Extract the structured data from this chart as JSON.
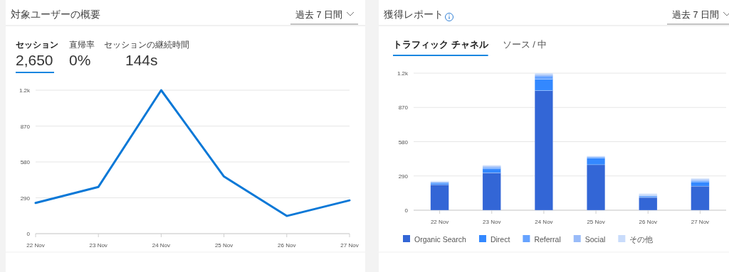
{
  "chart_data": [
    {
      "type": "line",
      "title": "対象ユーザーの概要",
      "annotations": [
        "過去 7 日間",
        "セッション",
        "2,650",
        "直帰率",
        "0%",
        "セッションの継続時間",
        "144s"
      ],
      "categories": [
        "22 Nov",
        "23 Nov",
        "24 Nov",
        "25 Nov",
        "26 Nov",
        "27 Nov"
      ],
      "series": [
        {
          "color": "#0a78d7",
          "values": [
            248,
            378,
            1160,
            462,
            143,
            269
          ]
        }
      ],
      "ylim": [
        0,
        1160
      ],
      "yticks": [
        0,
        290,
        580,
        870,
        {
          "value": 1160,
          "label": "1.2k"
        }
      ],
      "grid": "y",
      "marker": "none",
      "line_style": "solid"
    },
    {
      "type": "bar",
      "stacked": true,
      "title": "獲得レポート",
      "annotations": [
        "過去 7 日間",
        "トラフィック チャネル",
        "ソース / 中"
      ],
      "categories": [
        "22 Nov",
        "23 Nov",
        "24 Nov",
        "25 Nov",
        "26 Nov",
        "27 Nov"
      ],
      "series": [
        {
          "name": "Organic Search",
          "color": "#3366d6",
          "values": [
            216,
            317,
            1012,
            385,
            108,
            204
          ]
        },
        {
          "name": "Direct",
          "color": "#3388ff",
          "values": [
            12,
            34,
            98,
            58,
            6,
            36
          ]
        },
        {
          "name": "Referral",
          "color": "#66a3ff",
          "values": [
            8,
            12,
            26,
            8,
            8,
            10
          ]
        },
        {
          "name": "Social",
          "color": "#99bbf8",
          "values": [
            6,
            10,
            12,
            4,
            8,
            10
          ]
        },
        {
          "name": "その他",
          "color": "#c9dcfb",
          "values": [
            6,
            8,
            12,
            4,
            10,
            10
          ]
        }
      ],
      "ylim": [
        0,
        1160
      ],
      "yticks": [
        0,
        290,
        580,
        870,
        {
          "value": 1160,
          "label": "1.2k"
        }
      ],
      "grid": "y",
      "legend": "bottom"
    }
  ]
}
